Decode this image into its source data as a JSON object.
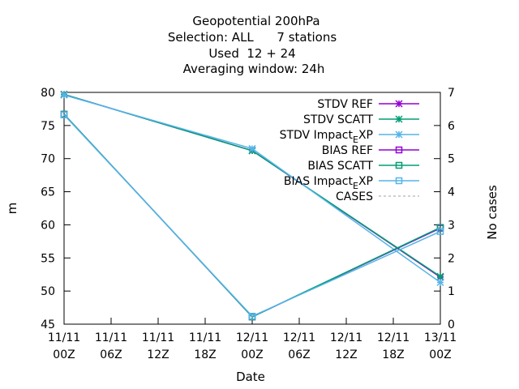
{
  "chart_data": {
    "type": "line",
    "title_lines": [
      "Geopotential 200hPa",
      "Selection: ALL      7 stations",
      "Used  12 + 24",
      "Averaging window: 24h"
    ],
    "xlabel": "Date",
    "ylabel": "m",
    "y2label": "No cases",
    "x_ticks": [
      [
        "11/11",
        "00Z"
      ],
      [
        "11/11",
        "06Z"
      ],
      [
        "11/11",
        "12Z"
      ],
      [
        "11/11",
        "18Z"
      ],
      [
        "12/11",
        "00Z"
      ],
      [
        "12/11",
        "06Z"
      ],
      [
        "12/11",
        "12Z"
      ],
      [
        "12/11",
        "18Z"
      ],
      [
        "13/11",
        "00Z"
      ]
    ],
    "xlim": [
      0,
      48
    ],
    "ylim": [
      45,
      80
    ],
    "y_ticks": [
      45,
      50,
      55,
      60,
      65,
      70,
      75,
      80
    ],
    "y2lim": [
      0,
      7
    ],
    "y2_ticks": [
      0,
      1,
      2,
      3,
      4,
      5,
      6,
      7
    ],
    "grid": false,
    "legend_position": "top-right",
    "x_hours": [
      0,
      24,
      48
    ],
    "series": [
      {
        "name": "STDV REF",
        "color": "#9400d3",
        "marker": "star",
        "values": [
          79.7,
          71.2,
          52.1
        ]
      },
      {
        "name": "STDV SCATT",
        "color": "#009e73",
        "marker": "star",
        "values": [
          79.7,
          71.2,
          52.2
        ]
      },
      {
        "name": "STDV Impact_EXP",
        "color": "#56b4e9",
        "marker": "star",
        "values": [
          79.6,
          71.5,
          51.3
        ]
      },
      {
        "name": "BIAS REF",
        "color": "#9400d3",
        "marker": "square",
        "values": [
          76.7,
          46.1,
          59.5
        ]
      },
      {
        "name": "BIAS SCATT",
        "color": "#009e73",
        "marker": "square",
        "values": [
          76.7,
          46.1,
          59.6
        ]
      },
      {
        "name": "BIAS Impact_EXP",
        "color": "#56b4e9",
        "marker": "square",
        "values": [
          76.6,
          46.2,
          59.0
        ]
      }
    ],
    "cases": {
      "name": "CASES",
      "color": "#a0a0a0",
      "values": []
    }
  }
}
